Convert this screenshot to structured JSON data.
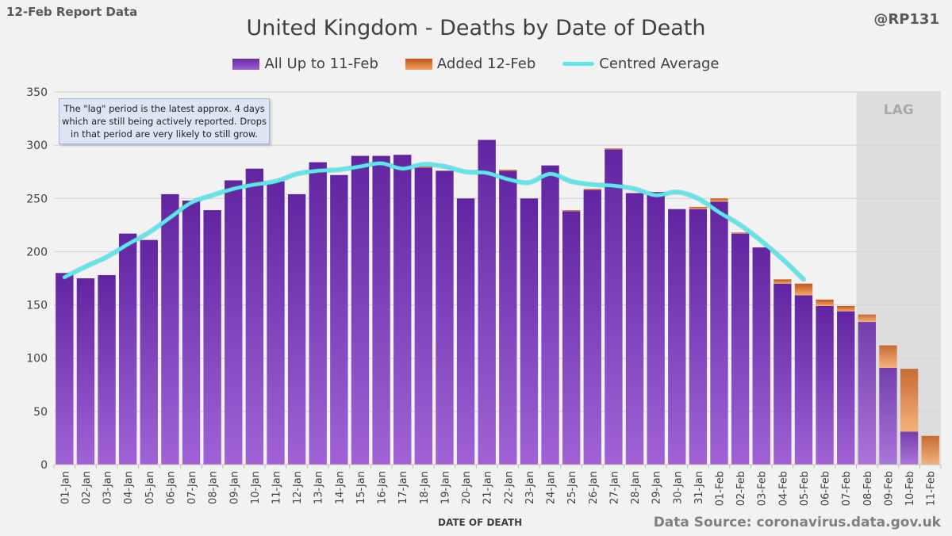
{
  "corner_label": "12-Feb Report Data",
  "handle": "@RP131",
  "note": "The \"lag\" period is the latest approx. 4 days which are still being actively reported. Drops in that period are very likely to still grow.",
  "source": "Data Source: coronavirus.data.gov.uk",
  "colors": {
    "primary": "#7030a0",
    "added": "#e07a30",
    "average": "#5ee6ea",
    "lag_band": "#d9d9d9"
  },
  "chart_data": {
    "type": "bar",
    "stacked": true,
    "title": "United Kingdom - Deaths by Date of Death",
    "xlabel": "DATE OF DEATH",
    "ylabel": "",
    "ylim": [
      0,
      350
    ],
    "yticks": [
      0,
      50,
      100,
      150,
      200,
      250,
      300,
      350
    ],
    "grid": true,
    "legend_position": "top",
    "categories": [
      "01-Jan",
      "02-Jan",
      "03-Jan",
      "04-Jan",
      "05-Jan",
      "06-Jan",
      "07-Jan",
      "08-Jan",
      "09-Jan",
      "10-Jan",
      "11-Jan",
      "12-Jan",
      "13-Jan",
      "14-Jan",
      "15-Jan",
      "16-Jan",
      "17-Jan",
      "18-Jan",
      "19-Jan",
      "20-Jan",
      "21-Jan",
      "22-Jan",
      "23-Jan",
      "24-Jan",
      "25-Jan",
      "26-Jan",
      "27-Jan",
      "28-Jan",
      "29-Jan",
      "30-Jan",
      "31-Jan",
      "01-Feb",
      "02-Feb",
      "03-Feb",
      "04-Feb",
      "05-Feb",
      "06-Feb",
      "07-Feb",
      "08-Feb",
      "09-Feb",
      "10-Feb",
      "11-Feb"
    ],
    "series": [
      {
        "name": "All Up to 11-Feb",
        "values": [
          180,
          175,
          178,
          217,
          211,
          254,
          248,
          239,
          267,
          278,
          266,
          254,
          284,
          272,
          290,
          290,
          291,
          279,
          276,
          250,
          305,
          276,
          250,
          281,
          238,
          258,
          296,
          255,
          256,
          240,
          240,
          247,
          217,
          204,
          170,
          159,
          149,
          144,
          134,
          91,
          31,
          0
        ]
      },
      {
        "name": "Added 12-Feb",
        "values": [
          0,
          0,
          0,
          0,
          0,
          0,
          0,
          0,
          0,
          0,
          0,
          0,
          0,
          0,
          0,
          0,
          0,
          1,
          0,
          0,
          0,
          1,
          0,
          0,
          1,
          1,
          1,
          0,
          0,
          0,
          2,
          3,
          1,
          0,
          4,
          11,
          6,
          5,
          7,
          21,
          59,
          27
        ]
      },
      {
        "name": "Centred Average",
        "type": "line",
        "values": [
          176,
          186,
          195,
          207,
          218,
          232,
          246,
          253,
          259,
          263,
          266,
          273,
          276,
          277,
          280,
          283,
          278,
          282,
          280,
          275,
          274,
          268,
          265,
          273,
          266,
          263,
          262,
          259,
          253,
          256,
          250,
          237,
          225,
          210,
          193,
          174,
          null,
          null,
          null,
          null,
          null,
          null
        ]
      }
    ],
    "annotations": [
      {
        "text": "LAG",
        "from": "08-Feb",
        "to": "11-Feb"
      }
    ]
  }
}
